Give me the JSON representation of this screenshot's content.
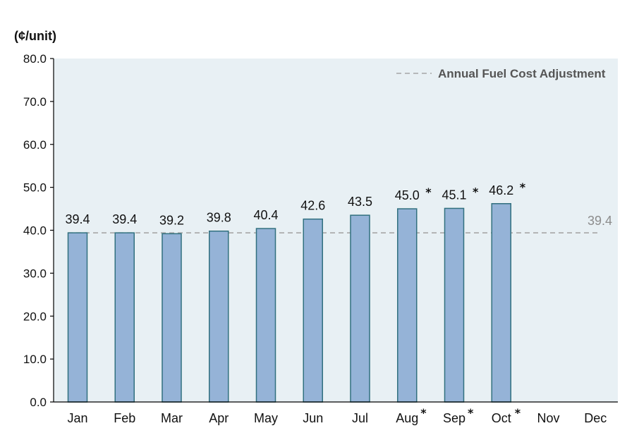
{
  "chart_data": {
    "type": "bar",
    "unit_label": "(¢/unit)",
    "categories": [
      "Jan",
      "Feb",
      "Mar",
      "Apr",
      "May",
      "Jun",
      "Jul",
      "Aug",
      "Sep",
      "Oct",
      "Nov",
      "Dec"
    ],
    "values": [
      39.4,
      39.4,
      39.2,
      39.8,
      40.4,
      42.6,
      43.5,
      45.0,
      45.1,
      46.2,
      null,
      null
    ],
    "data_labels": [
      "39.4",
      "39.4",
      "39.2",
      "39.8",
      "40.4",
      "42.6",
      "43.5",
      "45.0",
      "45.1",
      "46.2",
      "",
      ""
    ],
    "starred": [
      false,
      false,
      false,
      false,
      false,
      false,
      false,
      true,
      true,
      true,
      false,
      false
    ],
    "star_symbol": "*",
    "ylim": [
      0,
      80
    ],
    "yticks": [
      "0.0",
      "10.0",
      "20.0",
      "30.0",
      "40.0",
      "50.0",
      "60.0",
      "70.0",
      "80.0"
    ],
    "reference_line": {
      "name": "Annual Fuel Cost Adjustment",
      "value": 39.4,
      "label": "39.4",
      "style": "dashed",
      "color": "#a6a6a6"
    },
    "legend_position": "top-right",
    "grid": false,
    "colors": {
      "bar_fill": "#95b3d7",
      "bar_stroke": "#31707f",
      "plot_background": "#e8f0f4",
      "axis": "#000000"
    }
  }
}
